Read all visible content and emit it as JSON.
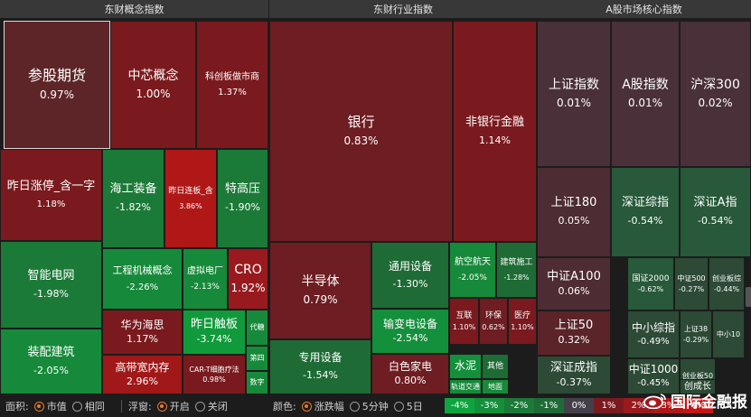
{
  "panels": [
    {
      "title": "东财概念指数",
      "tiles": [
        {
          "name": "参股期货",
          "value": "0.97%",
          "color": "#5e2528",
          "selected": true
        },
        {
          "name": "中芯概念",
          "value": "1.00%",
          "color": "#7a1a1e"
        },
        {
          "name": "科创板做市商",
          "value": "1.37%",
          "color": "#7a1a1e"
        },
        {
          "name": "昨日涨停_含一字",
          "value": "1.18%",
          "color": "#7a1a1e"
        },
        {
          "name": "海工装备",
          "value": "-1.82%",
          "color": "#1b7a37"
        },
        {
          "name": "昨日连板_含",
          "value": "3.86%",
          "color": "#b01818"
        },
        {
          "name": "特高压",
          "value": "-1.90%",
          "color": "#1b7a37"
        },
        {
          "name": "智能电网",
          "value": "-1.98%",
          "color": "#1b7a37"
        },
        {
          "name": "工程机械概念",
          "value": "-2.26%",
          "color": "#168a3a"
        },
        {
          "name": "虚拟电厂",
          "value": "-2.13%",
          "color": "#168a3a"
        },
        {
          "name": "CRO",
          "value": "1.92%",
          "color": "#981a1e"
        },
        {
          "name": "华为海思",
          "value": "1.17%",
          "color": "#7a1a1e"
        },
        {
          "name": "昨日触板",
          "value": "-3.74%",
          "color": "#119a3b"
        },
        {
          "name": "代糖",
          "value": "",
          "color": "#168a3a"
        },
        {
          "name": "装配建筑",
          "value": "-2.05%",
          "color": "#168a3a"
        },
        {
          "name": "高带宽内存",
          "value": "2.96%",
          "color": "#a01818"
        },
        {
          "name": "CAR-T细胞疗法",
          "value": "0.98%",
          "color": "#7a1a1e"
        },
        {
          "name": "第四",
          "value": "",
          "color": "#168a3a"
        },
        {
          "name": "数字",
          "value": "",
          "color": "#168a3a"
        }
      ]
    },
    {
      "title": "东财行业指数",
      "tiles": [
        {
          "name": "银行",
          "value": "0.83%",
          "color": "#6e1d22"
        },
        {
          "name": "非银行金融",
          "value": "1.14%",
          "color": "#7a1a1e"
        },
        {
          "name": "半导体",
          "value": "0.79%",
          "color": "#6e1d22"
        },
        {
          "name": "通用设备",
          "value": "-1.30%",
          "color": "#1e6b35"
        },
        {
          "name": "航空航天",
          "value": "-2.05%",
          "color": "#168a3a"
        },
        {
          "name": "建筑施工",
          "value": "-1.28%",
          "color": "#1e6b35"
        },
        {
          "name": "输变电设备",
          "value": "-2.54%",
          "color": "#148f3b"
        },
        {
          "name": "互联",
          "value": "1.10%",
          "color": "#7a1a1e"
        },
        {
          "name": "环保",
          "value": "0.62%",
          "color": "#6e1d22"
        },
        {
          "name": "医疗",
          "value": "1.10%",
          "color": "#7a1a1e"
        },
        {
          "name": "专用设备",
          "value": "-1.54%",
          "color": "#1e6b35"
        },
        {
          "name": "白色家电",
          "value": "0.80%",
          "color": "#6e1d22"
        },
        {
          "name": "水泥",
          "value": "",
          "color": "#148f3b"
        },
        {
          "name": "其他",
          "value": "",
          "color": "#1e6b35"
        },
        {
          "name": "轨道交通",
          "value": "",
          "color": "#168a3a"
        },
        {
          "name": "地面",
          "value": "",
          "color": "#168a3a"
        }
      ]
    },
    {
      "title": "A股市场核心指数",
      "tiles": [
        {
          "name": "上证指数",
          "value": "0.01%",
          "color": "#4a3038"
        },
        {
          "name": "A股指数",
          "value": "0.01%",
          "color": "#4a3038"
        },
        {
          "name": "沪深300",
          "value": "0.02%",
          "color": "#4a3038"
        },
        {
          "name": "上证180",
          "value": "0.05%",
          "color": "#4d2c33"
        },
        {
          "name": "深证综指",
          "value": "-0.54%",
          "color": "#27593a"
        },
        {
          "name": "深证A指",
          "value": "-0.54%",
          "color": "#27593a"
        },
        {
          "name": "中证A100",
          "value": "0.06%",
          "color": "#4d2c33"
        },
        {
          "name": "国证2000",
          "value": "-0.62%",
          "color": "#27593a"
        },
        {
          "name": "中证500",
          "value": "-0.27%",
          "color": "#2c4a35"
        },
        {
          "name": "创业板综",
          "value": "-0.44%",
          "color": "#2c4a35"
        },
        {
          "name": "上证50",
          "value": "0.32%",
          "color": "#5b2429"
        },
        {
          "name": "中小综指",
          "value": "-0.49%",
          "color": "#2c4a35"
        },
        {
          "name": "上证38",
          "value": "-0.29%",
          "color": "#2c4a35"
        },
        {
          "name": "中小10",
          "value": "",
          "color": "#2c4a35"
        },
        {
          "name": "深证成指",
          "value": "-0.37%",
          "color": "#2c4a35"
        },
        {
          "name": "中证1000",
          "value": "-0.45%",
          "color": "#2c4a35"
        },
        {
          "name": "创业板50",
          "value": "",
          "color": "#2c4a35"
        },
        {
          "name": "创成长",
          "value": "",
          "color": "#2c4a35"
        }
      ]
    }
  ],
  "controls": {
    "area_label": "面积:",
    "area_opt1": "市值",
    "area_opt2": "相同",
    "float_label": "浮窗:",
    "float_opt1": "开启",
    "float_opt2": "关闭",
    "color_label": "颜色:",
    "color_opt1": "涨跌幅",
    "color_opt2": "5分钟",
    "color_opt3": "5日"
  },
  "legend": [
    {
      "label": "-4%",
      "color": "#0fa53e"
    },
    {
      "label": "-3%",
      "color": "#148f3b"
    },
    {
      "label": "-2%",
      "color": "#1b7a37"
    },
    {
      "label": "-1%",
      "color": "#1e6b35"
    },
    {
      "label": "0%",
      "color": "#44404a"
    },
    {
      "label": "1%",
      "color": "#7a1a1e"
    },
    {
      "label": "2%",
      "color": "#981a1e"
    },
    {
      "label": "3%",
      "color": "#b01818"
    },
    {
      "label": "4%",
      "color": "#c51515"
    }
  ],
  "watermark": "国际金融报"
}
